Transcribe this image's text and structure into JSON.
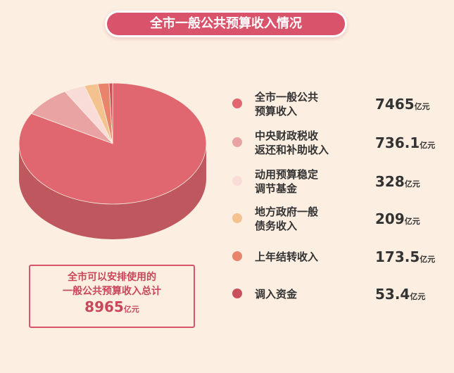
{
  "chart_data": {
    "type": "pie",
    "title": "全市一般公共预算收入情况",
    "categories": [
      "全市一般公共\n预算收入",
      "中央财政税收\n返还和补助收入",
      "动用预算稳定\n调节基金",
      "地方政府一般\n债务收入",
      "上年结转收入",
      "调入资金"
    ],
    "values": [
      7465,
      736.1,
      328,
      209,
      173.5,
      53.4
    ],
    "colors": [
      "#e0666f",
      "#e9a3a3",
      "#f9dcd8",
      "#f3c28e",
      "#e8846c",
      "#c9505b"
    ],
    "unit": "亿元",
    "total_label": "全市可以安排使用的\n一般公共预算收入总计",
    "total": 8965
  }
}
